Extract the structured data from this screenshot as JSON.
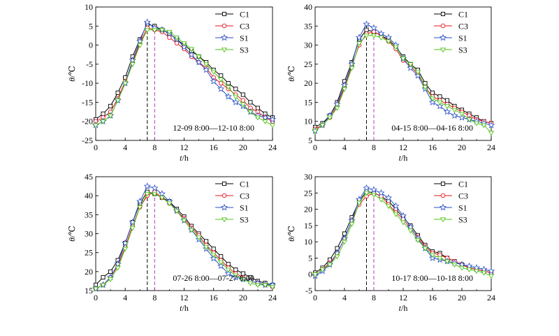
{
  "colors": {
    "C1": "#000000",
    "C3": "#e8141c",
    "S1": "#2b4fc6",
    "S3": "#52c418",
    "vline_black": "#000000",
    "vline_magenta": "#b03cb8"
  },
  "legend_entries": [
    "C1",
    "C3",
    "S1",
    "S3"
  ],
  "chart_data": [
    {
      "type": "line",
      "panel": "top-left",
      "annotation": "12-09 8:00—12-10 8:00",
      "xlabel_var": "t",
      "xlabel_unit": "/h",
      "ylabel_var": "θ",
      "ylabel_unit": "/℃",
      "xlim": [
        0,
        24
      ],
      "ylim": [
        -25,
        10
      ],
      "xticks": [
        0,
        4,
        8,
        12,
        16,
        20,
        24
      ],
      "yticks": [
        -25,
        -20,
        -15,
        -10,
        -5,
        0,
        5,
        10
      ],
      "vlines": [
        7,
        8
      ],
      "legend": "top-right",
      "grid": false,
      "x": [
        0,
        1,
        2,
        3,
        4,
        5,
        6,
        7,
        8,
        9,
        10,
        11,
        12,
        13,
        14,
        15,
        16,
        17,
        18,
        19,
        20,
        21,
        22,
        23,
        24
      ],
      "series": [
        {
          "name": "C1",
          "marker": "square",
          "values": [
            -19.5,
            -18.0,
            -16.0,
            -12.5,
            -8.5,
            -3.0,
            1.5,
            5.5,
            5.0,
            4.0,
            3.0,
            1.5,
            0.0,
            -1.5,
            -3.0,
            -4.5,
            -6.5,
            -8.0,
            -10.0,
            -11.5,
            -13.0,
            -15.0,
            -16.5,
            -18.0,
            -19.0
          ]
        },
        {
          "name": "C3",
          "marker": "circle",
          "values": [
            -20.0,
            -19.0,
            -17.5,
            -14.0,
            -9.5,
            -4.5,
            0.5,
            4.5,
            4.0,
            3.5,
            2.0,
            0.5,
            -1.0,
            -3.0,
            -4.5,
            -6.0,
            -8.5,
            -10.0,
            -11.5,
            -13.0,
            -14.5,
            -16.5,
            -17.5,
            -19.0,
            -20.0
          ]
        },
        {
          "name": "S1",
          "marker": "star",
          "values": [
            -21.0,
            -20.0,
            -18.5,
            -14.5,
            -10.0,
            -4.0,
            1.0,
            6.0,
            4.5,
            4.0,
            3.0,
            1.5,
            -0.5,
            -2.5,
            -4.5,
            -6.5,
            -9.5,
            -11.5,
            -13.5,
            -15.0,
            -16.0,
            -17.5,
            -18.5,
            -19.0,
            -19.5
          ]
        },
        {
          "name": "S3",
          "marker": "triangle-down",
          "values": [
            -21.0,
            -20.0,
            -18.5,
            -14.5,
            -10.0,
            -5.0,
            0.0,
            4.0,
            4.0,
            4.0,
            3.5,
            2.0,
            0.5,
            -1.0,
            -3.0,
            -5.0,
            -7.0,
            -9.0,
            -11.0,
            -13.5,
            -15.5,
            -17.5,
            -19.0,
            -20.0,
            -21.0
          ]
        }
      ]
    },
    {
      "type": "line",
      "panel": "top-right",
      "annotation": "04-15 8:00—04-16 8:00",
      "xlabel_var": "t",
      "xlabel_unit": "/h",
      "ylabel_var": "θ",
      "ylabel_unit": "/℃",
      "xlim": [
        0,
        24
      ],
      "ylim": [
        5,
        40
      ],
      "xticks": [
        0,
        4,
        8,
        12,
        16,
        20,
        24
      ],
      "yticks": [
        5,
        10,
        15,
        20,
        25,
        30,
        35,
        40
      ],
      "vlines": [
        7,
        8
      ],
      "legend": "top-right",
      "grid": false,
      "x": [
        0,
        1,
        2,
        3,
        4,
        5,
        6,
        7,
        8,
        9,
        10,
        11,
        12,
        13,
        14,
        15,
        16,
        17,
        18,
        19,
        20,
        21,
        22,
        23,
        24
      ],
      "series": [
        {
          "name": "C1",
          "marker": "square",
          "values": [
            8.5,
            9.5,
            11.5,
            15.0,
            20.5,
            25.5,
            31.5,
            34.0,
            33.5,
            32.5,
            31.5,
            29.5,
            27.0,
            25.0,
            23.5,
            20.0,
            17.5,
            16.5,
            15.5,
            14.0,
            13.0,
            12.0,
            11.0,
            10.0,
            9.5
          ]
        },
        {
          "name": "C3",
          "marker": "circle",
          "values": [
            8.0,
            9.0,
            11.0,
            14.0,
            19.0,
            24.5,
            30.0,
            33.0,
            33.5,
            32.5,
            31.0,
            29.0,
            26.0,
            24.5,
            22.5,
            19.0,
            16.5,
            15.5,
            14.5,
            13.5,
            12.5,
            11.5,
            10.5,
            10.0,
            9.5
          ]
        },
        {
          "name": "S1",
          "marker": "star",
          "values": [
            7.5,
            9.0,
            11.5,
            14.5,
            19.5,
            25.0,
            32.0,
            35.5,
            34.5,
            33.0,
            32.0,
            30.0,
            26.5,
            24.0,
            22.0,
            18.5,
            15.0,
            14.0,
            12.5,
            11.5,
            11.0,
            10.5,
            10.0,
            9.5,
            9.0
          ]
        },
        {
          "name": "S3",
          "marker": "triangle-down",
          "values": [
            7.5,
            9.0,
            11.0,
            13.5,
            18.5,
            24.0,
            30.5,
            32.5,
            32.5,
            32.0,
            31.0,
            29.5,
            26.5,
            25.0,
            23.0,
            19.0,
            16.0,
            15.0,
            14.0,
            13.0,
            12.0,
            10.5,
            9.5,
            9.0,
            7.0
          ]
        }
      ]
    },
    {
      "type": "line",
      "panel": "bottom-left",
      "annotation": "07-26 8:00—07-27 8:00",
      "xlabel_var": "t",
      "xlabel_unit": "/h",
      "ylabel_var": "θ",
      "ylabel_unit": "/℃",
      "xlim": [
        0,
        24
      ],
      "ylim": [
        15,
        45
      ],
      "xticks": [
        0,
        4,
        8,
        12,
        16,
        20,
        24
      ],
      "yticks": [
        15,
        20,
        25,
        30,
        35,
        40,
        45
      ],
      "vlines": [
        7,
        8
      ],
      "legend": "top-right",
      "grid": false,
      "x": [
        0,
        1,
        2,
        3,
        4,
        5,
        6,
        7,
        8,
        9,
        10,
        11,
        12,
        13,
        14,
        15,
        16,
        17,
        18,
        19,
        20,
        21,
        22,
        23,
        24
      ],
      "series": [
        {
          "name": "C1",
          "marker": "square",
          "values": [
            16.5,
            18.5,
            20.0,
            23.0,
            27.5,
            33.0,
            38.0,
            41.0,
            40.5,
            39.5,
            38.5,
            36.5,
            34.5,
            32.0,
            30.0,
            28.0,
            26.0,
            24.0,
            22.0,
            20.5,
            19.5,
            18.5,
            17.5,
            17.0,
            16.5
          ]
        },
        {
          "name": "C3",
          "marker": "circle",
          "values": [
            15.5,
            16.5,
            18.5,
            21.5,
            26.5,
            32.0,
            37.0,
            40.0,
            41.0,
            39.5,
            38.0,
            36.0,
            34.0,
            31.5,
            29.5,
            27.0,
            25.0,
            23.0,
            21.0,
            19.5,
            18.5,
            17.5,
            17.0,
            16.5,
            16.0
          ]
        },
        {
          "name": "S1",
          "marker": "star",
          "values": [
            15.5,
            16.5,
            18.5,
            22.0,
            27.5,
            33.0,
            38.5,
            42.5,
            42.0,
            40.5,
            38.5,
            36.0,
            33.5,
            31.0,
            28.5,
            26.0,
            23.5,
            21.5,
            19.5,
            18.5,
            18.0,
            17.5,
            17.0,
            16.5,
            16.5
          ]
        },
        {
          "name": "S3",
          "marker": "triangle-down",
          "values": [
            15.5,
            16.5,
            18.0,
            21.0,
            26.0,
            31.5,
            37.0,
            40.5,
            40.5,
            39.5,
            38.0,
            36.0,
            33.5,
            31.0,
            29.0,
            26.5,
            24.5,
            22.5,
            20.5,
            19.0,
            18.0,
            17.0,
            16.5,
            16.5,
            16.0
          ]
        }
      ]
    },
    {
      "type": "line",
      "panel": "bottom-right",
      "annotation": "10-17 8:00—10-18 8:00",
      "xlabel_var": "t",
      "xlabel_unit": "/h",
      "ylabel_var": "θ",
      "ylabel_unit": "/℃",
      "xlim": [
        0,
        24
      ],
      "ylim": [
        -5,
        30
      ],
      "xticks": [
        0,
        4,
        8,
        12,
        16,
        20,
        24
      ],
      "yticks": [
        -5,
        0,
        5,
        10,
        15,
        20,
        25,
        30
      ],
      "vlines": [
        7,
        8
      ],
      "legend": "top-right",
      "grid": false,
      "x": [
        0,
        1,
        2,
        3,
        4,
        5,
        6,
        7,
        8,
        9,
        10,
        11,
        12,
        13,
        14,
        15,
        16,
        17,
        18,
        19,
        20,
        21,
        22,
        23,
        24
      ],
      "series": [
        {
          "name": "C1",
          "marker": "square",
          "values": [
            0.5,
            2.0,
            4.5,
            8.0,
            12.5,
            17.5,
            22.5,
            25.5,
            25.0,
            24.0,
            22.5,
            20.0,
            17.5,
            15.0,
            12.0,
            9.0,
            7.0,
            6.5,
            5.0,
            4.0,
            3.0,
            2.0,
            1.5,
            1.0,
            0.5
          ]
        },
        {
          "name": "C3",
          "marker": "circle",
          "values": [
            0.0,
            1.5,
            3.5,
            6.5,
            11.0,
            16.5,
            21.5,
            24.0,
            25.0,
            24.0,
            21.5,
            19.0,
            17.0,
            14.0,
            11.5,
            8.5,
            6.5,
            6.0,
            5.0,
            4.0,
            3.0,
            2.0,
            1.5,
            1.0,
            0.5
          ]
        },
        {
          "name": "S1",
          "marker": "star",
          "values": [
            -0.5,
            1.0,
            3.0,
            6.5,
            11.0,
            16.5,
            23.0,
            26.5,
            26.0,
            25.0,
            23.5,
            21.0,
            18.0,
            14.5,
            11.0,
            8.0,
            5.0,
            4.5,
            4.0,
            3.5,
            3.0,
            2.5,
            2.0,
            1.5,
            1.0
          ]
        },
        {
          "name": "S3",
          "marker": "triangle-down",
          "values": [
            0.0,
            1.5,
            3.0,
            5.5,
            10.0,
            15.5,
            22.0,
            25.0,
            24.5,
            23.0,
            21.0,
            18.5,
            16.0,
            13.5,
            10.5,
            8.0,
            6.0,
            5.0,
            4.0,
            3.0,
            2.0,
            1.5,
            1.0,
            0.5,
            -0.5
          ]
        }
      ]
    }
  ]
}
